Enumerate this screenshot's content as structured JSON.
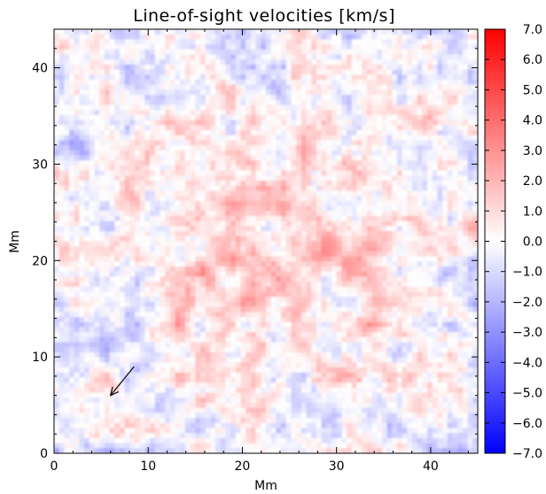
{
  "chart_data": {
    "type": "heatmap",
    "title": "Line-of-sight velocities [km/s]",
    "xlabel": "Mm",
    "ylabel": "Mm",
    "xlim": [
      0,
      45
    ],
    "ylim": [
      0,
      44
    ],
    "x_ticks": [
      "0",
      "10",
      "20",
      "30",
      "40"
    ],
    "x_tick_values": [
      0,
      10,
      20,
      30,
      40
    ],
    "y_ticks": [
      "0",
      "10",
      "20",
      "30",
      "40"
    ],
    "y_tick_values": [
      0,
      10,
      20,
      30,
      40
    ],
    "colorbar": {
      "range": [
        -7.0,
        7.0
      ],
      "ticks": [
        "7.0",
        "6.0",
        "5.0",
        "4.0",
        "3.0",
        "2.0",
        "1.0",
        "0.0",
        "−1.0",
        "−2.0",
        "−3.0",
        "−4.0",
        "−5.0",
        "−6.0",
        "−7.0"
      ],
      "tick_values": [
        7,
        6,
        5,
        4,
        3,
        2,
        1,
        0,
        -1,
        -2,
        -3,
        -4,
        -5,
        -6,
        -7
      ],
      "colors": {
        "negative": "#0000ff",
        "zero": "#ffffff",
        "positive": "#ff0000"
      }
    },
    "annotation": {
      "type": "arrow",
      "from": [
        8.5,
        9.0
      ],
      "to": [
        6.0,
        6.0
      ],
      "color": "#000000"
    },
    "grid": false
  }
}
